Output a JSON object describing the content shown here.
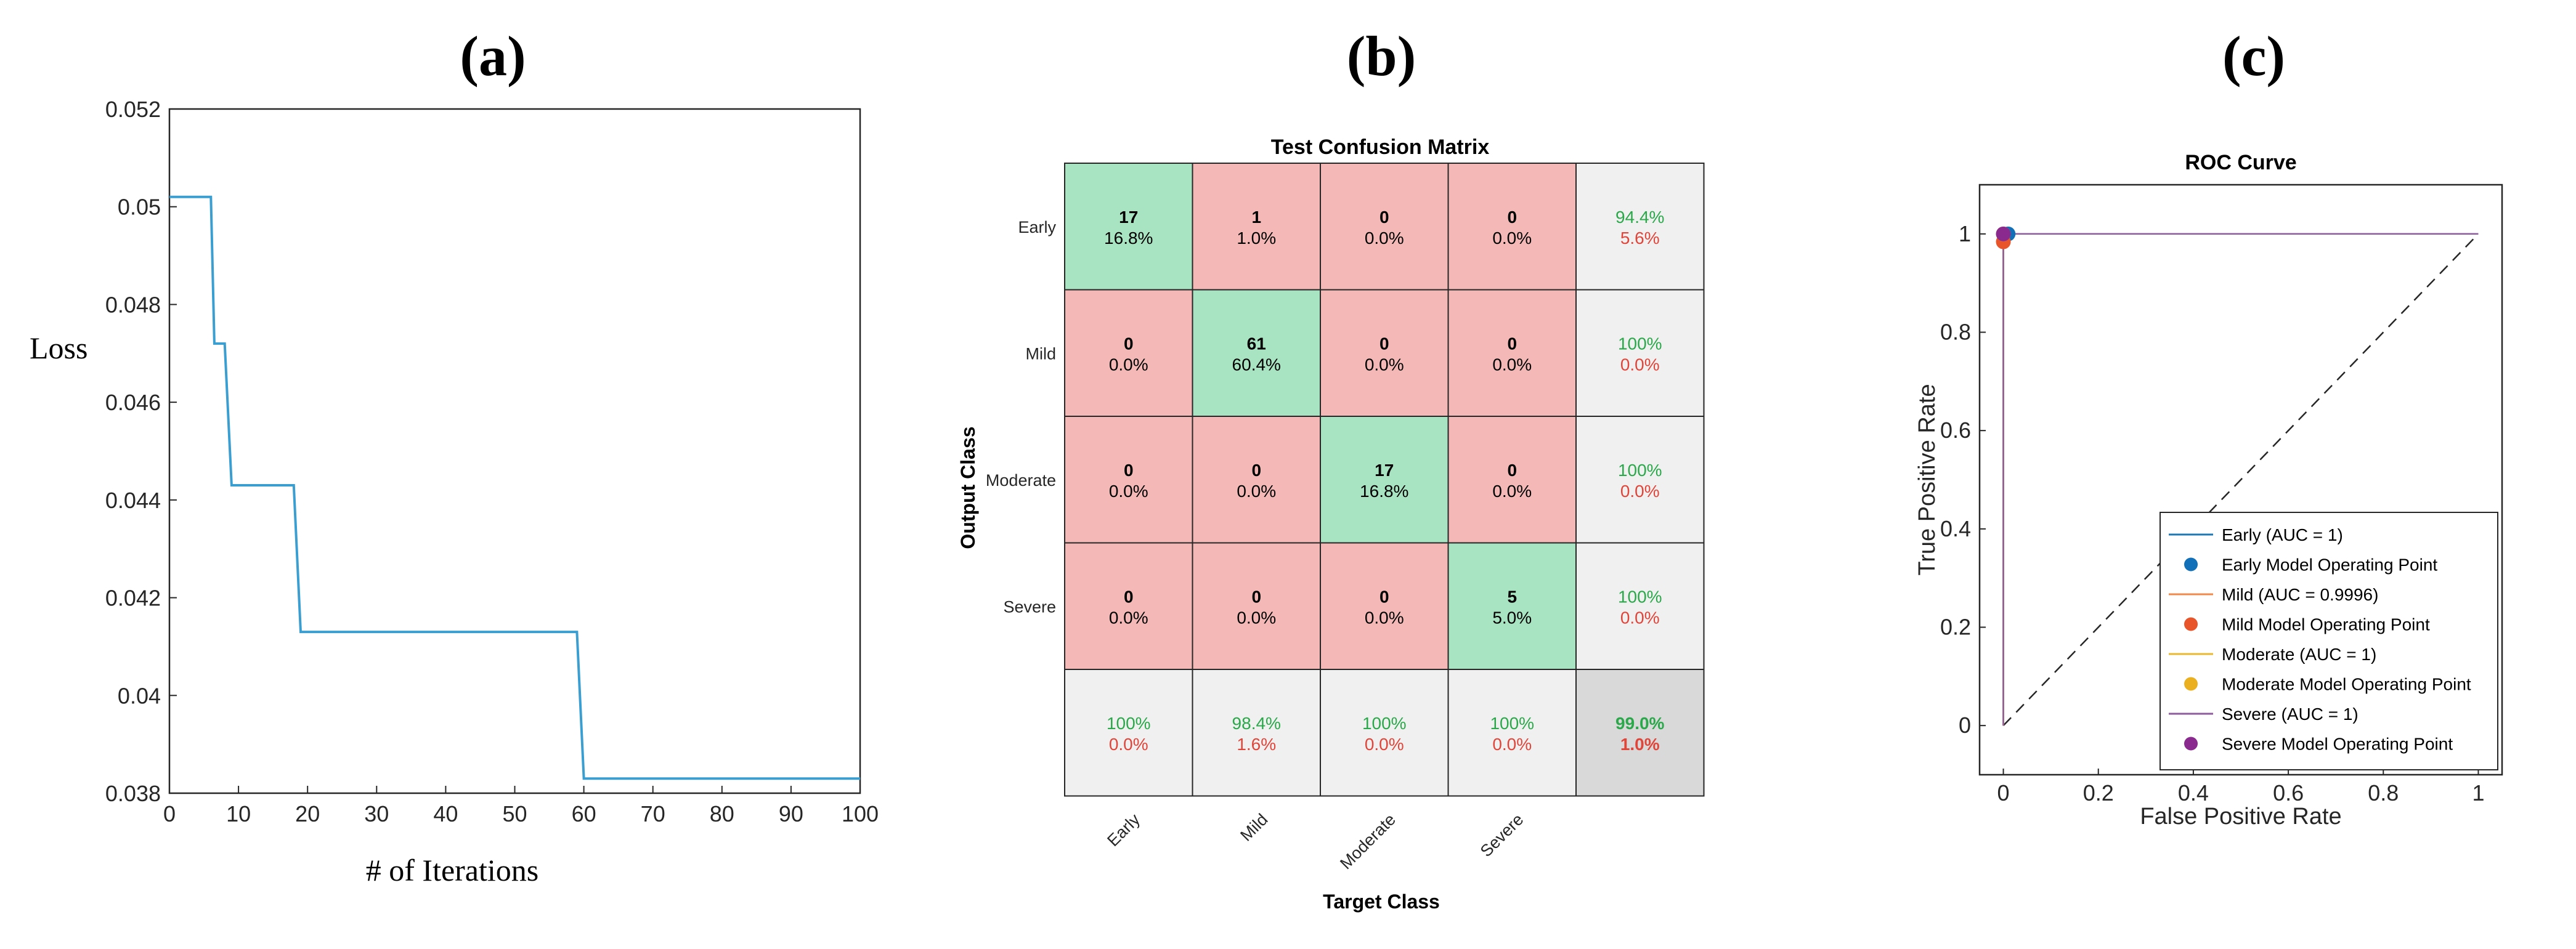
{
  "chart_data": [
    {
      "panel": "(a)",
      "type": "line",
      "title": "",
      "xlabel": "# of Iterations",
      "ylabel": "Loss",
      "xlim": [
        0,
        100
      ],
      "ylim": [
        0.038,
        0.052
      ],
      "xticks": [
        0,
        10,
        20,
        30,
        40,
        50,
        60,
        70,
        80,
        90,
        100
      ],
      "yticks": [
        0.038,
        0.04,
        0.042,
        0.044,
        0.046,
        0.048,
        0.05,
        0.052
      ],
      "ytick_labels": [
        "0.038",
        "0.04",
        "0.042",
        "0.044",
        "0.046",
        "0.048",
        "0.05",
        "0.052"
      ],
      "series": [
        {
          "name": "Loss",
          "color": "#3a9fd0",
          "x": [
            0,
            6,
            6.5,
            8,
            9,
            18,
            19,
            59,
            60,
            100
          ],
          "y": [
            0.0502,
            0.0502,
            0.0472,
            0.0472,
            0.0443,
            0.0443,
            0.0413,
            0.0413,
            0.0383,
            0.0383
          ]
        }
      ]
    },
    {
      "panel": "(b)",
      "type": "heatmap",
      "title": "Test Confusion Matrix",
      "xlabel": "Target Class",
      "ylabel": "Output Class",
      "classes": [
        "Early",
        "Mild",
        "Moderate",
        "Severe"
      ],
      "counts": [
        [
          17,
          1,
          0,
          0
        ],
        [
          0,
          61,
          0,
          0
        ],
        [
          0,
          0,
          17,
          0
        ],
        [
          0,
          0,
          0,
          5
        ]
      ],
      "percents": [
        [
          "16.8%",
          "1.0%",
          "0.0%",
          "0.0%"
        ],
        [
          "0.0%",
          "60.4%",
          "0.0%",
          "0.0%"
        ],
        [
          "0.0%",
          "0.0%",
          "16.8%",
          "0.0%"
        ],
        [
          "0.0%",
          "0.0%",
          "0.0%",
          "5.0%"
        ]
      ],
      "row_summary": [
        [
          "94.4%",
          "5.6%"
        ],
        [
          "100%",
          "0.0%"
        ],
        [
          "100%",
          "0.0%"
        ],
        [
          "100%",
          "0.0%"
        ]
      ],
      "col_summary": [
        [
          "100%",
          "0.0%"
        ],
        [
          "98.4%",
          "1.6%"
        ],
        [
          "100%",
          "0.0%"
        ],
        [
          "100%",
          "0.0%"
        ]
      ],
      "overall": [
        "99.0%",
        "1.0%"
      ],
      "colors": {
        "correct": "#a8e4c2",
        "incorrect": "#f4b9b7",
        "summary": "#f0f0f0",
        "overall": "#d9d9d9"
      }
    },
    {
      "panel": "(c)",
      "type": "line",
      "title": "ROC Curve",
      "xlabel": "False Positive Rate",
      "ylabel": "True Positive Rate",
      "xlim": [
        -0.05,
        1.05
      ],
      "ylim": [
        -0.1,
        1.1
      ],
      "xticks": [
        0,
        0.2,
        0.4,
        0.6,
        0.8,
        1
      ],
      "yticks": [
        0,
        0.2,
        0.4,
        0.6,
        0.8,
        1
      ],
      "series": [
        {
          "name": "Early (AUC = 1)",
          "color": "#1f77b4",
          "x": [
            0,
            0,
            1
          ],
          "y": [
            0,
            1,
            1
          ]
        },
        {
          "name": "Mild (AUC = 0.9996)",
          "color": "#f08a4b",
          "x": [
            0,
            0,
            0.01,
            1
          ],
          "y": [
            0,
            0.984,
            1,
            1
          ]
        },
        {
          "name": "Moderate (AUC = 1)",
          "color": "#e8b830",
          "x": [
            0,
            0,
            1
          ],
          "y": [
            0,
            1,
            1
          ]
        },
        {
          "name": "Severe (AUC = 1)",
          "color": "#8e5b9e",
          "x": [
            0,
            0,
            1
          ],
          "y": [
            0,
            1,
            1
          ]
        }
      ],
      "operating_points": [
        {
          "name": "Early Model Operating Point",
          "color": "#1170b8",
          "x": 0.01,
          "y": 1
        },
        {
          "name": "Mild Model Operating Point",
          "color": "#e8552a",
          "x": 0,
          "y": 0.984
        },
        {
          "name": "Moderate Model Operating Point",
          "color": "#eab020",
          "x": 0,
          "y": 1
        },
        {
          "name": "Severe Model Operating Point",
          "color": "#8a2a8e",
          "x": 0,
          "y": 1
        }
      ],
      "legend_entries": [
        {
          "label": "Early (AUC = 1)",
          "kind": "line",
          "color": "#1f77b4"
        },
        {
          "label": "Early Model Operating Point",
          "kind": "dot",
          "color": "#1170b8"
        },
        {
          "label": "Mild (AUC = 0.9996)",
          "kind": "line",
          "color": "#f08a4b"
        },
        {
          "label": "Mild Model Operating Point",
          "kind": "dot",
          "color": "#e8552a"
        },
        {
          "label": "Moderate (AUC = 1)",
          "kind": "line",
          "color": "#e8b830"
        },
        {
          "label": "Moderate Model Operating Point",
          "kind": "dot",
          "color": "#eab020"
        },
        {
          "label": "Severe (AUC = 1)",
          "kind": "line",
          "color": "#8e5b9e"
        },
        {
          "label": "Severe Model Operating Point",
          "kind": "dot",
          "color": "#8a2a8e"
        }
      ],
      "legend_location": "bottom-right"
    }
  ]
}
